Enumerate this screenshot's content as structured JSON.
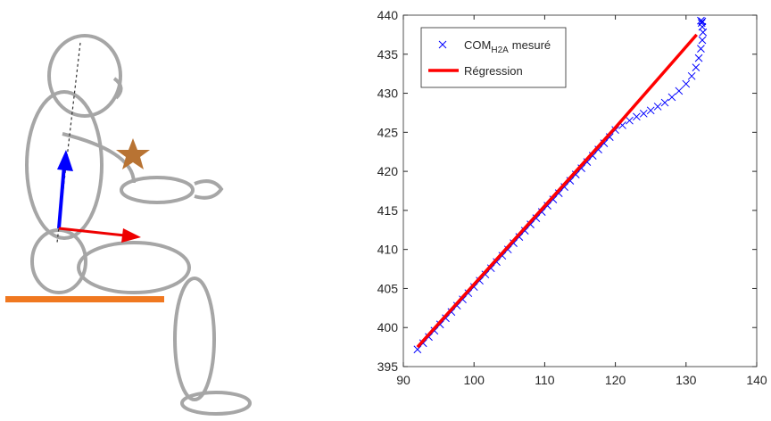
{
  "chart_data": {
    "type": "scatter",
    "xlim": [
      90,
      140
    ],
    "xticks": [
      90,
      100,
      110,
      120,
      130,
      140
    ],
    "ylim": [
      395,
      440
    ],
    "yticks": [
      395,
      400,
      405,
      410,
      415,
      420,
      425,
      430,
      435,
      440
    ],
    "legend_position": "upper left",
    "series": [
      {
        "name": "COM",
        "name_subscript": "H2A",
        "name_suffix": "mesuré",
        "color": "#0000ff",
        "mode": "markers",
        "x": [
          92,
          92.8,
          93.6,
          94.4,
          95.2,
          96,
          96.8,
          97.6,
          98.4,
          99.2,
          100,
          100.8,
          101.6,
          102.4,
          103.2,
          104,
          104.8,
          105.6,
          106.4,
          107.2,
          108,
          108.8,
          109.6,
          110.4,
          111.2,
          112,
          112.8,
          113.6,
          114.4,
          115.2,
          116,
          116.8,
          117.6,
          118.4,
          119.2,
          120,
          121,
          122,
          123,
          124,
          125,
          126,
          127,
          128,
          129,
          130,
          130.8,
          131.4,
          131.8,
          132.1,
          132.3,
          132.4,
          132.3,
          132.2,
          132.1,
          132.3
        ],
        "values": [
          397.2,
          398,
          398.8,
          399.6,
          400.4,
          401.2,
          402,
          402.8,
          403.6,
          404.4,
          405.2,
          406,
          406.8,
          407.6,
          408.4,
          409.2,
          410,
          410.8,
          411.6,
          412.4,
          413.2,
          414,
          414.8,
          415.6,
          416.4,
          417.2,
          418,
          418.8,
          419.6,
          420.4,
          421.2,
          422,
          422.8,
          423.6,
          424.4,
          425.3,
          425.9,
          426.5,
          427,
          427.4,
          427.8,
          428.3,
          428.8,
          429.5,
          430.3,
          431.2,
          432.2,
          433.3,
          434.5,
          435.7,
          436.8,
          437.8,
          438.5,
          439,
          439.3,
          439.2
        ]
      },
      {
        "name": "Régression",
        "color": "#ff0000",
        "mode": "line",
        "x": [
          92,
          120,
          131.5
        ],
        "values": [
          397.5,
          425.6,
          437.5
        ]
      }
    ]
  }
}
